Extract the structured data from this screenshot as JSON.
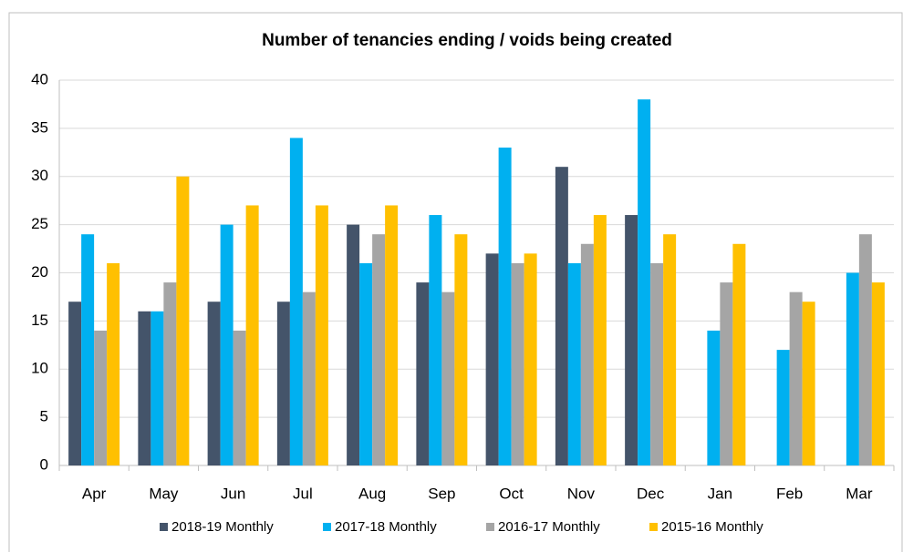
{
  "chart_data": {
    "type": "bar",
    "title": "Number of tenancies ending / voids being created",
    "categories": [
      "Apr",
      "May",
      "Jun",
      "Jul",
      "Aug",
      "Sep",
      "Oct",
      "Nov",
      "Dec",
      "Jan",
      "Feb",
      "Mar"
    ],
    "series": [
      {
        "name": "2018-19 Monthly",
        "color": "#44546a",
        "values": [
          17,
          16,
          17,
          17,
          25,
          19,
          22,
          31,
          26,
          null,
          null,
          null
        ]
      },
      {
        "name": "2017-18 Monthly",
        "color": "#00b0f0",
        "values": [
          24,
          16,
          25,
          34,
          21,
          26,
          33,
          21,
          38,
          14,
          12,
          20
        ]
      },
      {
        "name": "2016-17 Monthly",
        "color": "#a5a5a5",
        "values": [
          14,
          19,
          14,
          18,
          24,
          18,
          21,
          23,
          21,
          19,
          18,
          24
        ]
      },
      {
        "name": "2015-16 Monthly",
        "color": "#ffc000",
        "values": [
          21,
          30,
          27,
          27,
          27,
          24,
          22,
          26,
          24,
          23,
          17,
          19
        ]
      }
    ],
    "ylim": [
      0,
      40
    ],
    "yticks": [
      0,
      5,
      10,
      15,
      20,
      25,
      30,
      35,
      40
    ],
    "grid": true,
    "legend": "bottom"
  }
}
